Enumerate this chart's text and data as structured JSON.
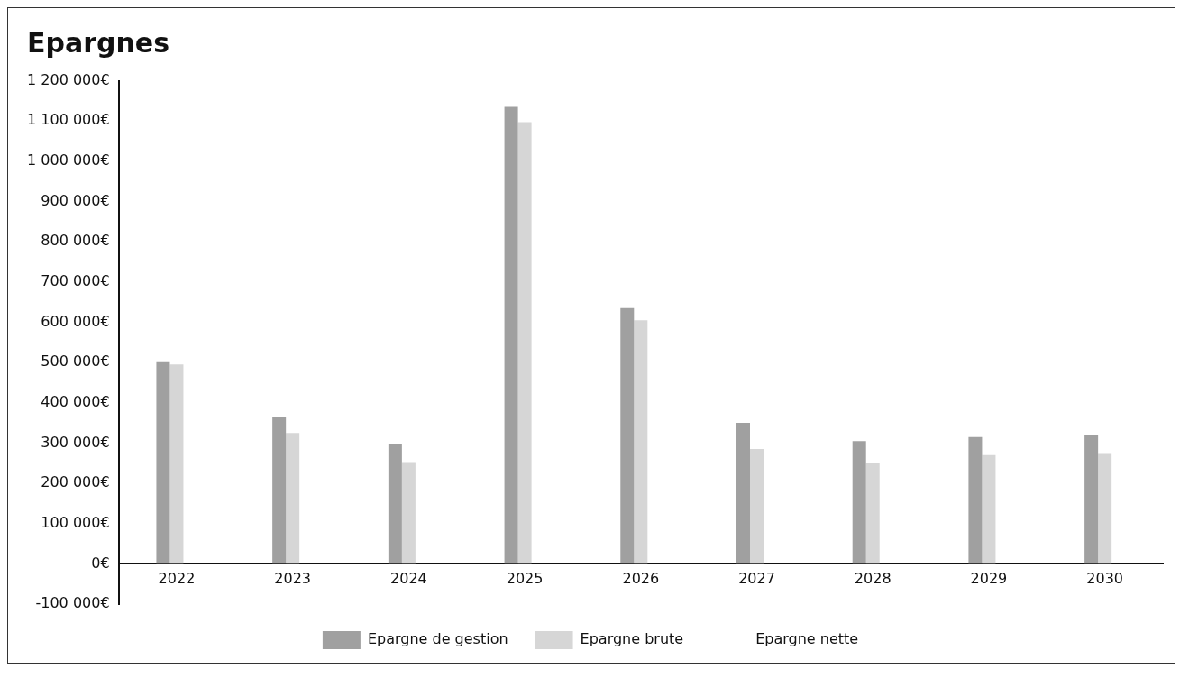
{
  "chart_data": {
    "type": "bar",
    "title": "Epargnes",
    "categories": [
      "2022",
      "2023",
      "2024",
      "2025",
      "2026",
      "2027",
      "2028",
      "2029",
      "2030"
    ],
    "series": [
      {
        "name": "Epargne de gestion",
        "color": "#a0a0a0",
        "values": [
          503000,
          365000,
          298000,
          1135000,
          635000,
          350000,
          305000,
          315000,
          320000
        ]
      },
      {
        "name": "Epargne brute",
        "color": "#d6d6d6",
        "values": [
          495000,
          325000,
          253000,
          1097000,
          605000,
          285000,
          250000,
          270000,
          275000
        ]
      },
      {
        "name": "Epargne nette",
        "values": [
          null,
          null,
          null,
          null,
          null,
          null,
          null,
          null,
          null
        ]
      }
    ],
    "ylim": [
      -100000,
      1200000
    ],
    "yticks": [
      {
        "value": -100000,
        "label": "-100 000€"
      },
      {
        "value": 0,
        "label": "0€"
      },
      {
        "value": 100000,
        "label": "100 000€"
      },
      {
        "value": 200000,
        "label": "200 000€"
      },
      {
        "value": 300000,
        "label": "300 000€"
      },
      {
        "value": 400000,
        "label": "400 000€"
      },
      {
        "value": 500000,
        "label": "500 000€"
      },
      {
        "value": 600000,
        "label": "600 000€"
      },
      {
        "value": 700000,
        "label": "700 000€"
      },
      {
        "value": 800000,
        "label": "800 000€"
      },
      {
        "value": 900000,
        "label": "900 000€"
      },
      {
        "value": 1000000,
        "label": "1 000 000€"
      },
      {
        "value": 1100000,
        "label": "1 100 000€"
      },
      {
        "value": 1200000,
        "label": "1 200 000€"
      }
    ],
    "grid": false,
    "legend": "bottom"
  }
}
